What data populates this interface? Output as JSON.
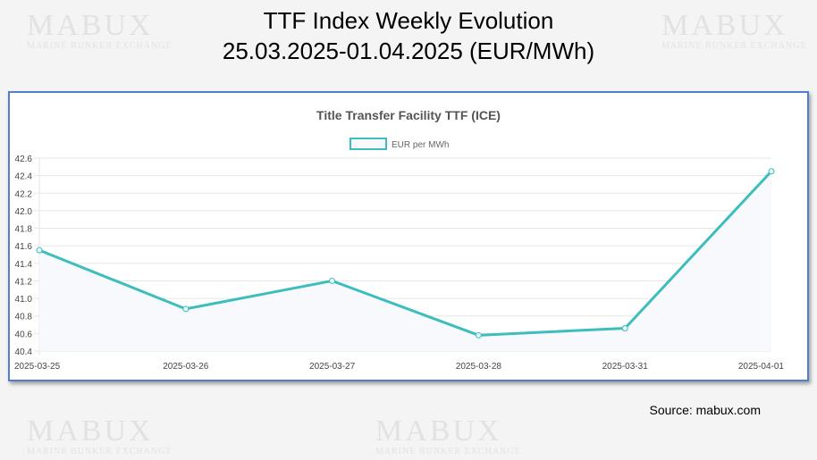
{
  "header": {
    "title_line1": "TTF Index Weekly Evolution",
    "title_line2": "25.03.2025-01.04.2025 (EUR/MWh)"
  },
  "watermark": {
    "brand": "MABUX",
    "tagline": "MARINE BUNKER EXCHANGE"
  },
  "source": "Source: mabux.com",
  "colors": {
    "line": "#3dbdbd",
    "fill": "#f7f9fc",
    "frame": "#4f7fd0"
  },
  "chart_data": {
    "type": "line",
    "title": "Title Transfer Facility TTF (ICE)",
    "legend": "top-center",
    "grid": true,
    "categories": [
      "2025-03-25",
      "2025-03-26",
      "2025-03-27",
      "2025-03-28",
      "2025-03-31",
      "2025-04-01"
    ],
    "series": [
      {
        "name": "EUR per MWh",
        "values": [
          41.55,
          40.88,
          41.2,
          40.58,
          40.66,
          42.45
        ]
      }
    ],
    "ylim": [
      40.4,
      42.6
    ],
    "yticks": [
      "40.4",
      "40.6",
      "40.8",
      "41.0",
      "41.2",
      "41.4",
      "41.6",
      "41.8",
      "42.0",
      "42.2",
      "42.4",
      "42.6"
    ]
  }
}
